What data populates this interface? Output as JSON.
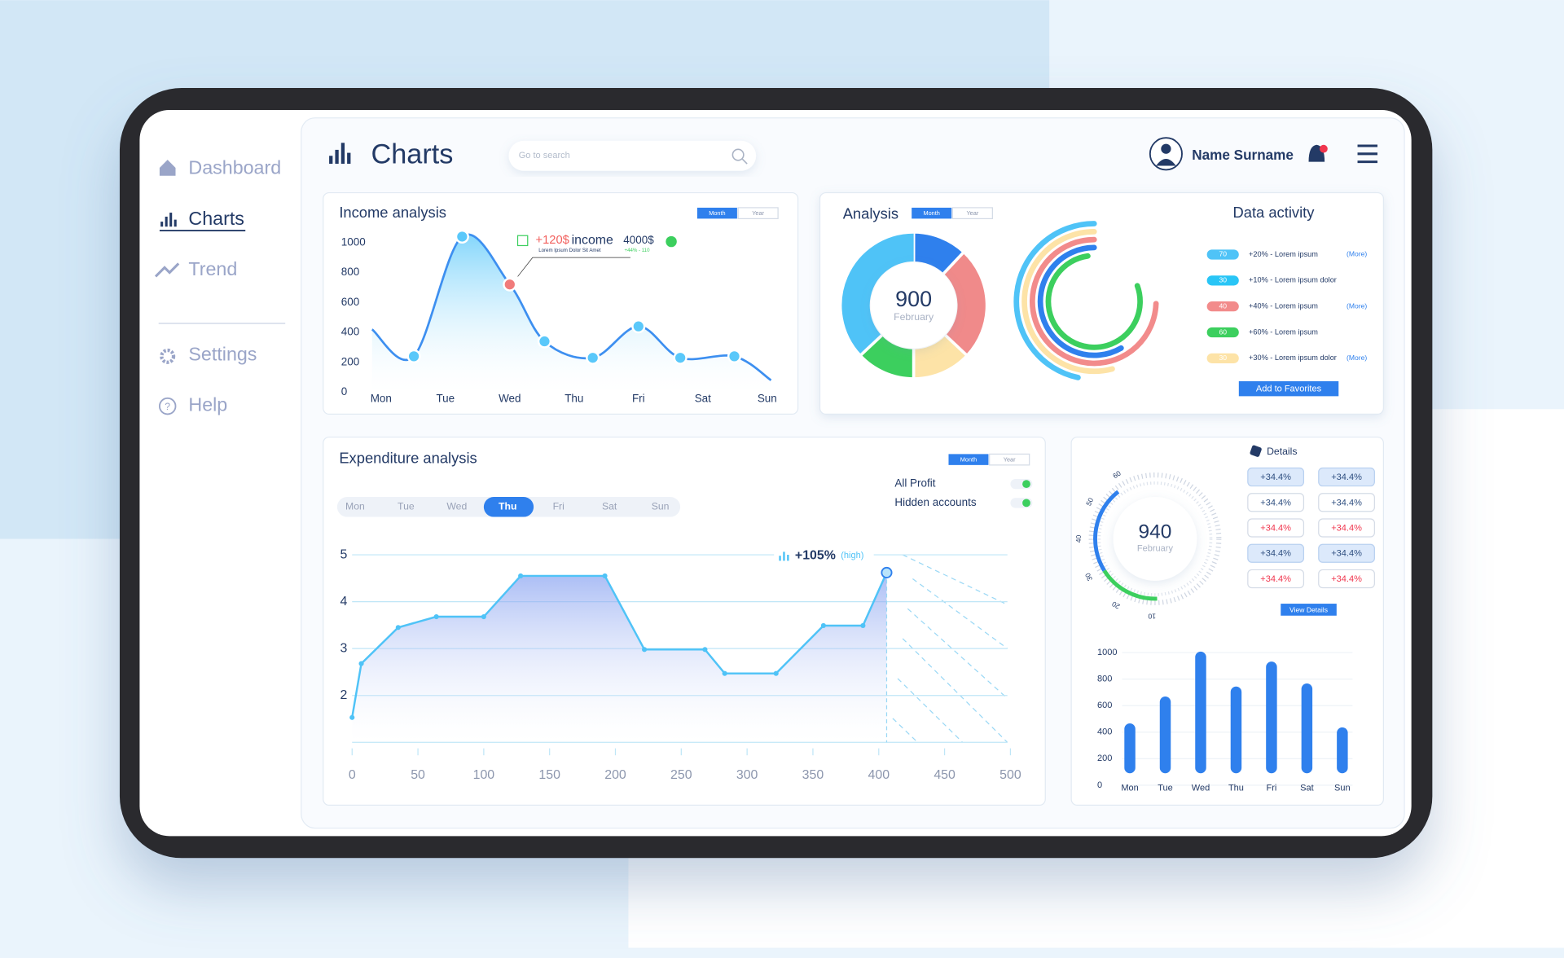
{
  "sidebar": {
    "items": [
      "Dashboard",
      "Charts",
      "Trend",
      "Settings",
      "Help"
    ]
  },
  "header": {
    "title": "Charts",
    "search_placeholder": "Go to search",
    "user": "Name Surname"
  },
  "chart_data": [
    {
      "type": "line",
      "title": "Income analysis",
      "toggle": [
        "Month",
        "Year"
      ],
      "x": [
        -0.14,
        0.51,
        1.26,
        2.0,
        2.54,
        3.29,
        4.0,
        4.65,
        5.49,
        6.06
      ],
      "values": [
        420,
        240,
        1040,
        720,
        340,
        230,
        440,
        230,
        240,
        80
      ],
      "color": "#3d8ff0",
      "point_color": "#5ac8fa",
      "highlight": 3,
      "highlight_color": "#f07b7b",
      "xlim": [
        -0.14,
        6.06
      ],
      "xticks": [
        {
          "value": 0,
          "label": "Mon"
        },
        {
          "value": 1,
          "label": "Tue"
        },
        {
          "value": 2,
          "label": "Wed"
        },
        {
          "value": 3,
          "label": "Thu"
        },
        {
          "value": 4,
          "label": "Fri"
        },
        {
          "value": 5,
          "label": "Sat"
        },
        {
          "value": 6,
          "label": "Sun"
        }
      ],
      "ylim": [
        0,
        1000
      ],
      "yticks": [
        0,
        200,
        400,
        600,
        800,
        1000
      ],
      "annotation": {
        "change": "+120$",
        "label": "income",
        "amount": "4000$",
        "note": "Lorem Ipsum Dolor Sit Amet",
        "delta": "+44% - 110"
      }
    },
    {
      "type": "donut",
      "title": "Analysis",
      "toggle": [
        "Month",
        "Year"
      ],
      "values": [
        12,
        25,
        13,
        13,
        37
      ],
      "colors": [
        "#2f80ed",
        "#f08a8a",
        "#fde3a7",
        "#3ccf5e",
        "#4fc3f7"
      ],
      "center_value": 900,
      "center_label": "February"
    },
    {
      "type": "line",
      "title": "Expenditure analysis",
      "toggle": [
        "Month",
        "Year"
      ],
      "days": [
        "Mon",
        "Tue",
        "Wed",
        "Thu",
        "Fri",
        "Sat",
        "Sun"
      ],
      "active_day": 3,
      "switches": [
        "All Profit",
        "Hidden accounts"
      ],
      "x": [
        0,
        7,
        35,
        64,
        100,
        128,
        192,
        222,
        268,
        283,
        322,
        358,
        388,
        406
      ],
      "values": [
        1.53,
        2.68,
        3.45,
        3.68,
        3.68,
        4.55,
        4.55,
        2.98,
        2.98,
        2.47,
        2.47,
        3.49,
        3.49,
        4.62
      ],
      "color": "#4fc3f7",
      "xlim": [
        0,
        500
      ],
      "xticks": [
        0,
        50,
        100,
        150,
        200,
        250,
        300,
        350,
        400,
        450,
        500
      ],
      "ylim": [
        1,
        5
      ],
      "yticks": [
        2,
        3,
        4,
        5
      ],
      "grid": true,
      "annotation": {
        "value": "+105%",
        "note": "(high)"
      }
    },
    {
      "type": "bar",
      "categories": [
        "Mon",
        "Tue",
        "Wed",
        "Thu",
        "Fri",
        "Sat",
        "Sun"
      ],
      "values": [
        466,
        669,
        1007,
        744,
        932,
        767,
        436
      ],
      "color": "#2f80ed",
      "ylim": [
        0,
        1000
      ],
      "yticks": [
        0,
        200,
        400,
        600,
        800,
        1000
      ],
      "grid": true
    }
  ],
  "data_activity": {
    "title": "Data activity",
    "items": [
      {
        "badge": 70,
        "color": "#4fc3f7",
        "text": "+20% - Lorem ipsum",
        "more": "(More)"
      },
      {
        "badge": 30,
        "color": "#29c5f6",
        "text": "+10% - Lorem ipsum dolor"
      },
      {
        "badge": 40,
        "color": "#f28b8b",
        "text": "+40% - Lorem ipsum",
        "more": "(More)"
      },
      {
        "badge": 60,
        "color": "#3ccf5e",
        "text": "+60% - Lorem ipsum"
      },
      {
        "badge": 30,
        "color": "#fde3a7",
        "text": "+30% - Lorem ipsum dolor",
        "more": "(More)"
      }
    ],
    "button": "Add to Favorites"
  },
  "details": {
    "title": "Details",
    "gauge_value": 940,
    "gauge_label": "February",
    "gauge_ticks": [
      60,
      50,
      40,
      30,
      20,
      10
    ],
    "buttons": [
      [
        "+34.4%",
        "+34.4%"
      ],
      [
        "+34.4%",
        "+34.4%"
      ],
      [
        "+34.4%",
        "+34.4%"
      ],
      [
        "+34.4%",
        "+34.4%"
      ],
      [
        "+34.4%",
        "+34.4%"
      ]
    ],
    "button": "View Details"
  }
}
